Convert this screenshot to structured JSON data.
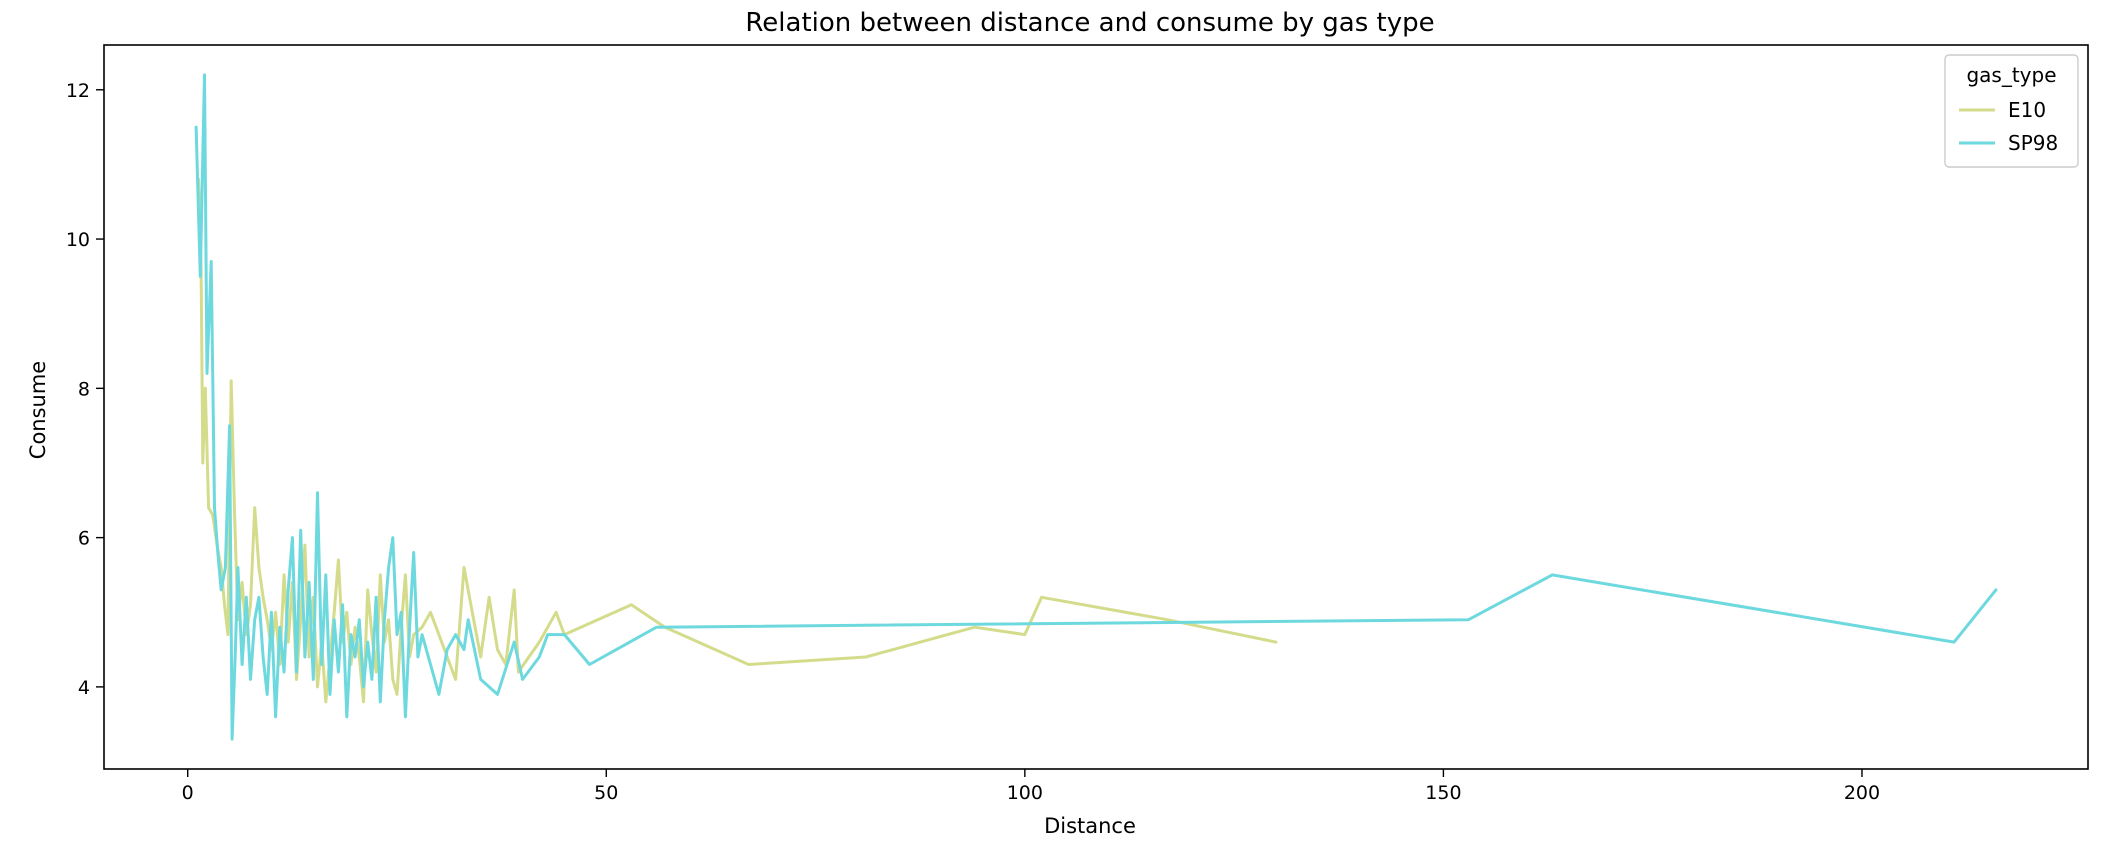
{
  "chart_data": {
    "type": "line",
    "title": "Relation between distance and consume by gas type",
    "xlabel": "Distance",
    "ylabel": "Consume",
    "xlim": [
      -10,
      227
    ],
    "ylim": [
      2.9,
      12.6
    ],
    "xticks": [
      0,
      50,
      100,
      150,
      200
    ],
    "yticks": [
      4,
      6,
      8,
      10,
      12
    ],
    "grid": false,
    "legend": {
      "title": "gas_type",
      "position": "top-right"
    },
    "series": [
      {
        "name": "E10",
        "color": "#d4dc8c",
        "points": [
          [
            1.3,
            10.8
          ],
          [
            1.6,
            9.6
          ],
          [
            1.8,
            7.0
          ],
          [
            2.1,
            8.0
          ],
          [
            2.5,
            6.4
          ],
          [
            3.0,
            6.3
          ],
          [
            3.5,
            5.9
          ],
          [
            4.0,
            5.6
          ],
          [
            4.4,
            5.1
          ],
          [
            4.8,
            4.7
          ],
          [
            5.2,
            8.1
          ],
          [
            5.6,
            6.3
          ],
          [
            6.0,
            4.9
          ],
          [
            6.5,
            5.4
          ],
          [
            7.0,
            4.7
          ],
          [
            7.5,
            5.1
          ],
          [
            8.0,
            6.4
          ],
          [
            8.5,
            5.6
          ],
          [
            9.0,
            5.2
          ],
          [
            9.5,
            4.9
          ],
          [
            10.0,
            4.5
          ],
          [
            10.5,
            5.0
          ],
          [
            11.0,
            4.3
          ],
          [
            11.5,
            5.5
          ],
          [
            12.0,
            4.6
          ],
          [
            12.5,
            5.4
          ],
          [
            13.0,
            4.1
          ],
          [
            13.5,
            4.9
          ],
          [
            14.0,
            5.9
          ],
          [
            14.5,
            4.4
          ],
          [
            15.0,
            5.2
          ],
          [
            15.5,
            4.0
          ],
          [
            16.0,
            4.6
          ],
          [
            16.5,
            3.8
          ],
          [
            17.0,
            4.4
          ],
          [
            17.5,
            5.0
          ],
          [
            18.0,
            5.7
          ],
          [
            18.5,
            4.6
          ],
          [
            19.0,
            5.0
          ],
          [
            19.5,
            4.3
          ],
          [
            20.0,
            4.8
          ],
          [
            20.5,
            4.4
          ],
          [
            21.0,
            3.8
          ],
          [
            21.5,
            5.3
          ],
          [
            22.0,
            4.7
          ],
          [
            22.5,
            4.2
          ],
          [
            23.0,
            5.5
          ],
          [
            23.5,
            4.6
          ],
          [
            24.0,
            4.9
          ],
          [
            24.5,
            4.1
          ],
          [
            25.0,
            3.9
          ],
          [
            25.5,
            4.8
          ],
          [
            26.0,
            5.5
          ],
          [
            26.5,
            4.4
          ],
          [
            27.0,
            4.7
          ],
          [
            28.0,
            4.8
          ],
          [
            29.0,
            5.0
          ],
          [
            30.0,
            4.7
          ],
          [
            31.0,
            4.4
          ],
          [
            32.0,
            4.1
          ],
          [
            33.0,
            5.6
          ],
          [
            34.0,
            5.0
          ],
          [
            35.0,
            4.4
          ],
          [
            36.0,
            5.2
          ],
          [
            37.0,
            4.5
          ],
          [
            38.0,
            4.3
          ],
          [
            39.0,
            5.3
          ],
          [
            39.5,
            4.2
          ],
          [
            42.0,
            4.6
          ],
          [
            44.0,
            5.0
          ],
          [
            45.0,
            4.7
          ],
          [
            53.0,
            5.1
          ],
          [
            57.0,
            4.8
          ],
          [
            67.0,
            4.3
          ],
          [
            81.0,
            4.4
          ],
          [
            94.0,
            4.8
          ],
          [
            100.0,
            4.7
          ],
          [
            102.0,
            5.2
          ],
          [
            117.0,
            4.9
          ],
          [
            130.0,
            4.6
          ]
        ]
      },
      {
        "name": "SP98",
        "color": "#6dd9df",
        "points": [
          [
            1.0,
            11.5
          ],
          [
            1.5,
            9.5
          ],
          [
            2.0,
            12.2
          ],
          [
            2.3,
            8.2
          ],
          [
            2.8,
            9.7
          ],
          [
            3.2,
            6.4
          ],
          [
            3.6,
            5.8
          ],
          [
            4.0,
            5.3
          ],
          [
            4.5,
            5.6
          ],
          [
            5.0,
            7.5
          ],
          [
            5.3,
            3.3
          ],
          [
            5.7,
            4.5
          ],
          [
            6.0,
            5.6
          ],
          [
            6.5,
            4.3
          ],
          [
            7.0,
            5.2
          ],
          [
            7.5,
            4.1
          ],
          [
            8.0,
            4.9
          ],
          [
            8.5,
            5.2
          ],
          [
            9.0,
            4.4
          ],
          [
            9.5,
            3.9
          ],
          [
            10.0,
            5.0
          ],
          [
            10.5,
            3.6
          ],
          [
            11.0,
            4.8
          ],
          [
            11.5,
            4.2
          ],
          [
            12.0,
            5.3
          ],
          [
            12.5,
            6.0
          ],
          [
            13.0,
            4.2
          ],
          [
            13.5,
            6.1
          ],
          [
            14.0,
            4.4
          ],
          [
            14.5,
            5.4
          ],
          [
            15.0,
            4.1
          ],
          [
            15.5,
            6.6
          ],
          [
            16.0,
            4.3
          ],
          [
            16.5,
            5.5
          ],
          [
            17.0,
            3.9
          ],
          [
            17.5,
            4.9
          ],
          [
            18.0,
            4.2
          ],
          [
            18.5,
            5.1
          ],
          [
            19.0,
            3.6
          ],
          [
            19.5,
            4.7
          ],
          [
            20.0,
            4.4
          ],
          [
            20.5,
            4.9
          ],
          [
            21.0,
            4.0
          ],
          [
            21.5,
            4.6
          ],
          [
            22.0,
            4.1
          ],
          [
            22.5,
            5.2
          ],
          [
            23.0,
            3.8
          ],
          [
            23.5,
            4.9
          ],
          [
            24.0,
            5.6
          ],
          [
            24.5,
            6.0
          ],
          [
            25.0,
            4.7
          ],
          [
            25.5,
            5.0
          ],
          [
            26.0,
            3.6
          ],
          [
            26.5,
            4.8
          ],
          [
            27.0,
            5.8
          ],
          [
            27.5,
            4.4
          ],
          [
            28.0,
            4.7
          ],
          [
            29.0,
            4.3
          ],
          [
            30.0,
            3.9
          ],
          [
            31.0,
            4.5
          ],
          [
            32.0,
            4.7
          ],
          [
            33.0,
            4.5
          ],
          [
            33.5,
            4.9
          ],
          [
            35.0,
            4.1
          ],
          [
            37.0,
            3.9
          ],
          [
            39.0,
            4.6
          ],
          [
            40.0,
            4.1
          ],
          [
            42.0,
            4.4
          ],
          [
            43.0,
            4.7
          ],
          [
            45.0,
            4.7
          ],
          [
            48.0,
            4.3
          ],
          [
            56.0,
            4.8
          ],
          [
            153.0,
            4.9
          ],
          [
            163.0,
            5.5
          ],
          [
            211.0,
            4.6
          ],
          [
            216.0,
            5.3
          ]
        ]
      }
    ]
  }
}
